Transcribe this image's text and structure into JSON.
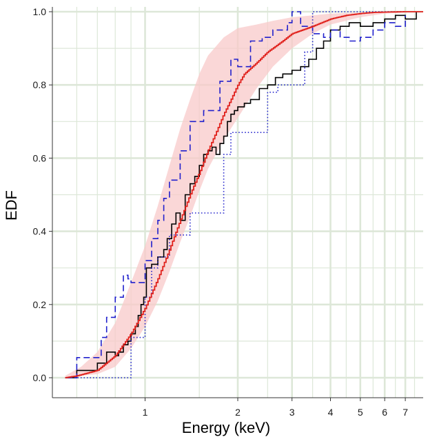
{
  "chart_data": {
    "type": "line",
    "title": "",
    "xlabel": "Energy (keV)",
    "ylabel": "EDF",
    "x_scale": "log",
    "xlim": [
      0.5,
      8.0
    ],
    "ylim": [
      0.0,
      1.0
    ],
    "grid": true,
    "legend": "none",
    "x_ticks": [
      {
        "value": 1,
        "label": "1"
      },
      {
        "value": 2,
        "label": "2"
      },
      {
        "value": 3,
        "label": "3"
      },
      {
        "value": 4,
        "label": "4"
      },
      {
        "value": 5,
        "label": "5"
      },
      {
        "value": 6,
        "label": "6"
      },
      {
        "value": 7,
        "label": "7"
      }
    ],
    "x_minor_ticks": [
      0.6,
      0.7,
      0.8,
      0.9,
      1.5,
      2.5,
      3.5,
      4.5,
      5.5,
      6.5,
      7.5
    ],
    "y_ticks": [
      {
        "value": 0.0,
        "label": "0.0"
      },
      {
        "value": 0.2,
        "label": "0.2"
      },
      {
        "value": 0.4,
        "label": "0.4"
      },
      {
        "value": 0.6,
        "label": "0.6"
      },
      {
        "value": 0.8,
        "label": "0.8"
      },
      {
        "value": 1.0,
        "label": "1.0"
      }
    ],
    "colors": {
      "grid": "#dde7d8",
      "band": "#f8caca",
      "model": "#e0201b",
      "black": "#000000",
      "blue": "#1f1fcc"
    },
    "band": {
      "x": [
        0.55,
        0.62,
        0.7,
        0.8,
        0.9,
        1.0,
        1.1,
        1.2,
        1.3,
        1.4,
        1.5,
        1.6,
        1.8,
        2.0,
        2.3,
        2.6,
        3.0,
        3.5,
        4.0,
        5.0,
        6.0,
        7.0,
        8.0
      ],
      "upper": [
        0.005,
        0.03,
        0.07,
        0.15,
        0.26,
        0.36,
        0.47,
        0.58,
        0.68,
        0.76,
        0.83,
        0.88,
        0.93,
        0.955,
        0.965,
        0.975,
        0.985,
        0.99,
        0.995,
        0.998,
        0.999,
        1.0,
        1.0
      ],
      "lower": [
        0.0,
        0.005,
        0.01,
        0.03,
        0.08,
        0.14,
        0.21,
        0.29,
        0.37,
        0.44,
        0.51,
        0.57,
        0.65,
        0.71,
        0.79,
        0.85,
        0.9,
        0.94,
        0.965,
        0.985,
        0.995,
        0.998,
        1.0
      ]
    },
    "series": [
      {
        "style": "step-solid",
        "color": "#000000",
        "x": [
          0.55,
          0.6,
          0.7,
          0.75,
          0.8,
          0.82,
          0.85,
          0.88,
          0.9,
          0.93,
          0.95,
          0.97,
          0.99,
          1.01,
          1.05,
          1.1,
          1.15,
          1.18,
          1.22,
          1.26,
          1.3,
          1.35,
          1.4,
          1.45,
          1.5,
          1.55,
          1.6,
          1.65,
          1.7,
          1.75,
          1.8,
          1.85,
          1.9,
          1.95,
          2.0,
          2.1,
          2.2,
          2.35,
          2.5,
          2.65,
          2.8,
          3.0,
          3.2,
          3.4,
          3.6,
          3.8,
          4.0,
          4.3,
          4.6,
          5.0,
          5.5,
          6.0,
          6.5,
          7.0,
          7.6
        ],
        "y": [
          0.0,
          0.02,
          0.04,
          0.07,
          0.06,
          0.07,
          0.09,
          0.1,
          0.12,
          0.14,
          0.17,
          0.2,
          0.22,
          0.3,
          0.31,
          0.33,
          0.35,
          0.38,
          0.42,
          0.45,
          0.43,
          0.5,
          0.53,
          0.55,
          0.58,
          0.61,
          0.62,
          0.63,
          0.61,
          0.64,
          0.66,
          0.7,
          0.72,
          0.73,
          0.74,
          0.75,
          0.76,
          0.79,
          0.8,
          0.82,
          0.83,
          0.84,
          0.85,
          0.87,
          0.9,
          0.92,
          0.95,
          0.96,
          0.97,
          0.96,
          0.97,
          0.98,
          0.99,
          0.98,
          1.0
        ]
      },
      {
        "style": "step-dashed",
        "color": "#1f1fcc",
        "x": [
          0.55,
          0.6,
          0.72,
          0.75,
          0.8,
          0.85,
          0.88,
          0.9,
          1.0,
          1.05,
          1.1,
          1.15,
          1.2,
          1.3,
          1.4,
          1.55,
          1.75,
          1.9,
          2.0,
          2.2,
          2.4,
          2.6,
          2.9,
          3.0,
          3.2,
          3.5,
          3.8,
          4.0,
          4.3,
          4.6,
          5.0,
          5.5,
          6.0,
          6.5,
          7.0
        ],
        "y": [
          0.0,
          0.055,
          0.11,
          0.165,
          0.22,
          0.28,
          0.27,
          0.26,
          0.32,
          0.38,
          0.43,
          0.49,
          0.54,
          0.62,
          0.7,
          0.73,
          0.81,
          0.87,
          0.85,
          0.92,
          0.93,
          0.95,
          0.97,
          1.0,
          0.96,
          0.94,
          0.93,
          0.95,
          0.93,
          0.92,
          0.93,
          0.95,
          0.97,
          0.96,
          0.99
        ]
      },
      {
        "style": "step-dotted",
        "color": "#1f1fcc",
        "x": [
          0.55,
          0.6,
          0.72,
          0.85,
          0.9,
          1.0,
          1.05,
          1.1,
          1.2,
          1.4,
          1.8,
          1.9,
          2.1,
          2.5,
          2.7,
          3.0,
          3.3,
          3.5,
          4.0,
          5.0,
          6.0,
          7.0
        ],
        "y": [
          0.0,
          0.0,
          0.0,
          0.0,
          0.11,
          0.22,
          0.3,
          0.33,
          0.39,
          0.45,
          0.61,
          0.67,
          0.67,
          0.78,
          0.8,
          0.8,
          0.89,
          1.0,
          1.0,
          1.0,
          1.0,
          1.0
        ]
      }
    ],
    "model_curve": {
      "style": "solid-jagged",
      "color": "#e0201b",
      "x": [
        0.55,
        0.6,
        0.7,
        0.8,
        0.9,
        1.0,
        1.1,
        1.2,
        1.3,
        1.4,
        1.5,
        1.6,
        1.7,
        1.8,
        1.9,
        2.0,
        2.1,
        2.3,
        2.5,
        2.8,
        3.0,
        3.5,
        4.0,
        4.5,
        5.0,
        5.5,
        6.0,
        7.0,
        8.0
      ],
      "y": [
        0.0,
        0.005,
        0.02,
        0.06,
        0.12,
        0.19,
        0.27,
        0.35,
        0.43,
        0.5,
        0.56,
        0.62,
        0.67,
        0.72,
        0.76,
        0.8,
        0.83,
        0.86,
        0.89,
        0.92,
        0.94,
        0.96,
        0.98,
        0.99,
        0.995,
        0.998,
        0.999,
        1.0,
        1.0
      ]
    }
  }
}
